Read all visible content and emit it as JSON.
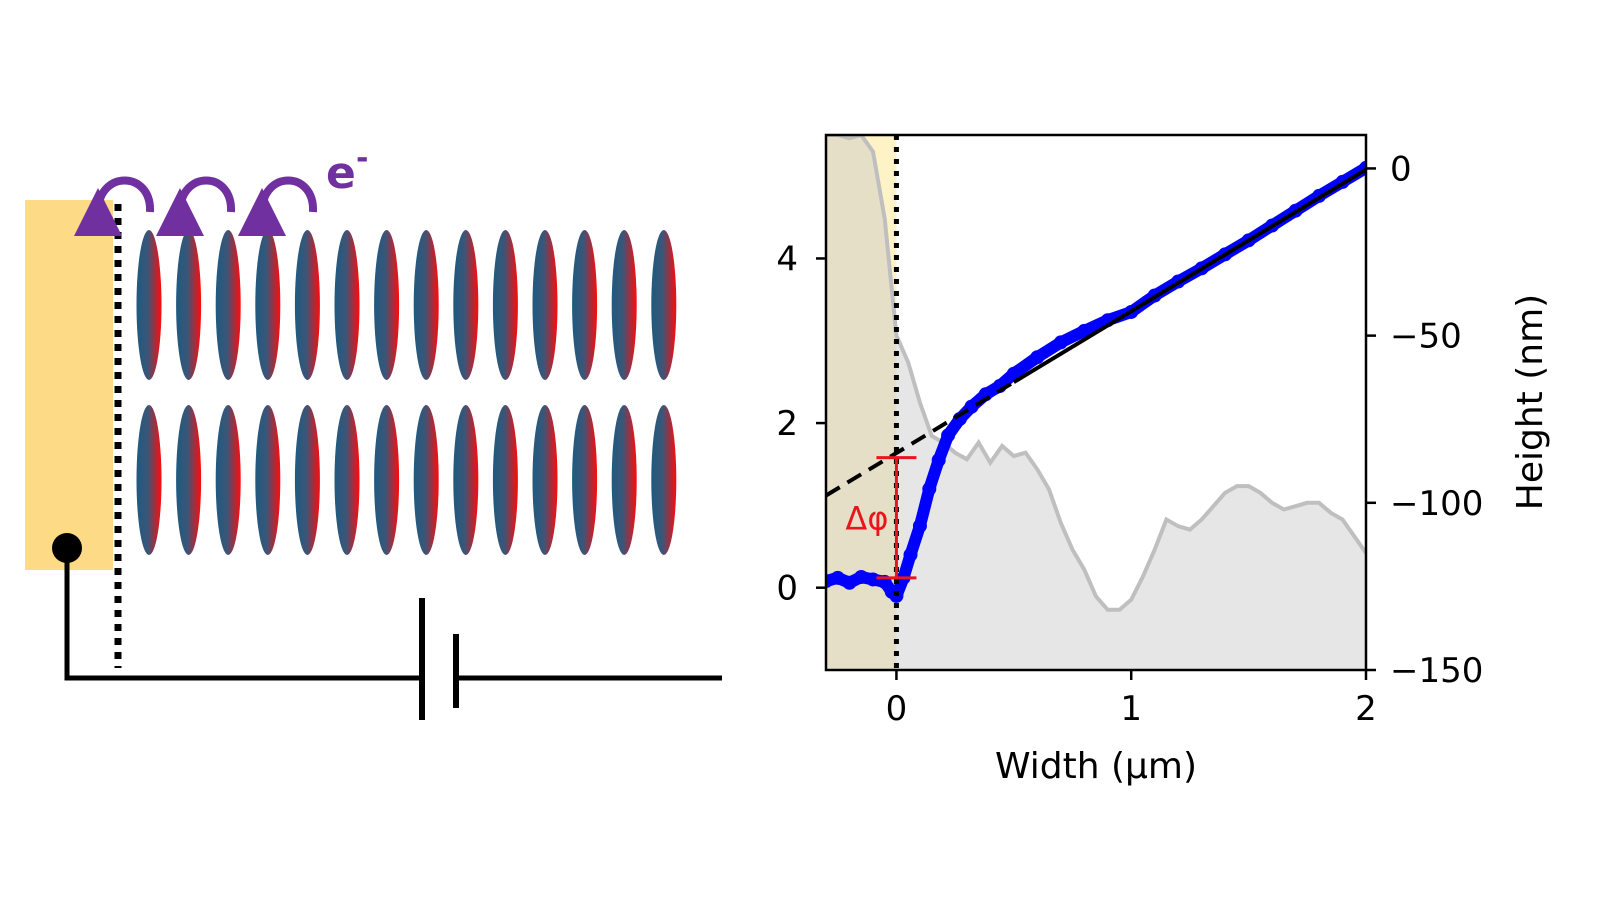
{
  "diagram": {
    "electron_label": "e",
    "electron_sign": "-",
    "colors": {
      "electrode": "#fdda85",
      "molecule_left": "#1f5a80",
      "molecule_right": "#ff0a0a",
      "arrow": "#7030a0",
      "circuit": "#000000"
    },
    "molecule_rows": 2,
    "molecules_per_row": 14
  },
  "chart_data": {
    "type": "line",
    "xlabel": "Width (μm)",
    "ylabel": "",
    "ylabel_right": "Height (nm)",
    "xlim": [
      -0.3,
      2.0
    ],
    "ylim": [
      -1.0,
      5.5
    ],
    "ylim_right": [
      -150,
      10
    ],
    "xticks": [
      0,
      1,
      2
    ],
    "yticks": [
      0,
      2,
      4
    ],
    "yticks_right": [
      0,
      -50,
      -100,
      -150
    ],
    "xtick_labels": [
      "0",
      "1",
      "2"
    ],
    "ytick_labels": [
      "0",
      "2",
      "4"
    ],
    "ytick_labels_right": [
      "0",
      "−50",
      "−100",
      "−150"
    ],
    "grid": false,
    "electrode_region": [
      -0.3,
      0.0
    ],
    "boundary_x": 0.0,
    "annotation": {
      "text": "Δφ",
      "x": 0.0,
      "y_low": 0.12,
      "y_high": 1.58
    },
    "series": [
      {
        "role": "measured",
        "color": "#0000ff",
        "axis": "left",
        "x": [
          -0.3,
          -0.25,
          -0.2,
          -0.15,
          -0.1,
          -0.05,
          -0.02,
          0.0,
          0.03,
          0.06,
          0.1,
          0.14,
          0.18,
          0.22,
          0.27,
          0.32,
          0.38,
          0.44,
          0.5,
          0.6,
          0.7,
          0.8,
          0.9,
          1.0,
          1.1,
          1.2,
          1.3,
          1.4,
          1.5,
          1.6,
          1.7,
          1.8,
          1.9,
          2.0
        ],
        "y": [
          0.08,
          0.12,
          0.06,
          0.13,
          0.1,
          0.07,
          -0.05,
          -0.1,
          0.12,
          0.4,
          0.75,
          1.2,
          1.55,
          1.85,
          2.05,
          2.2,
          2.35,
          2.45,
          2.6,
          2.8,
          2.98,
          3.12,
          3.25,
          3.35,
          3.55,
          3.72,
          3.88,
          4.05,
          4.22,
          4.4,
          4.58,
          4.76,
          4.93,
          5.1
        ]
      },
      {
        "role": "linear-fit",
        "color": "#000000",
        "axis": "left",
        "x": [
          -0.3,
          2.0
        ],
        "y": [
          1.12,
          5.08
        ]
      },
      {
        "role": "height-profile",
        "color": "#c0c0c0",
        "axis": "right",
        "x": [
          -0.3,
          -0.25,
          -0.2,
          -0.15,
          -0.1,
          -0.05,
          0.0,
          0.05,
          0.1,
          0.15,
          0.2,
          0.25,
          0.3,
          0.35,
          0.4,
          0.45,
          0.5,
          0.55,
          0.6,
          0.65,
          0.7,
          0.75,
          0.8,
          0.85,
          0.9,
          0.95,
          1.0,
          1.05,
          1.1,
          1.15,
          1.2,
          1.25,
          1.3,
          1.35,
          1.4,
          1.45,
          1.5,
          1.55,
          1.6,
          1.65,
          1.7,
          1.75,
          1.8,
          1.85,
          1.9,
          1.95,
          2.0
        ],
        "y": [
          10,
          10,
          9,
          10,
          5,
          -15,
          -50,
          -58,
          -70,
          -80,
          -82,
          -85,
          -87,
          -82,
          -88,
          -83,
          -86,
          -85,
          -90,
          -96,
          -106,
          -114,
          -120,
          -128,
          -132,
          -132,
          -129,
          -122,
          -114,
          -105,
          -107,
          -108,
          -105,
          -101,
          -97,
          -95,
          -95,
          -97,
          -100,
          -102,
          -101,
          -100,
          -100,
          -103,
          -105,
          -110,
          -115
        ]
      }
    ]
  }
}
